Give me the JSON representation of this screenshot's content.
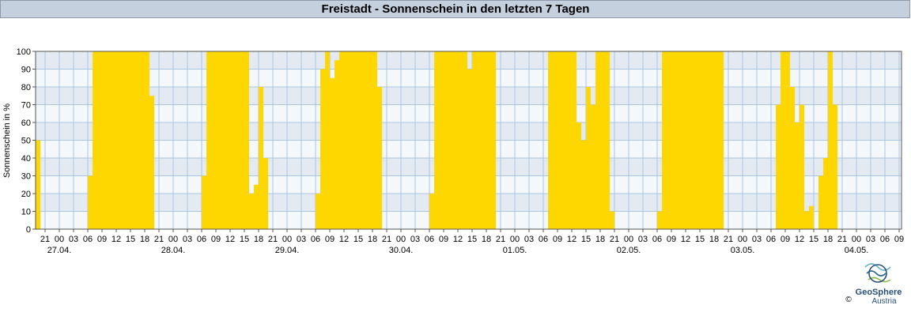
{
  "chart_data": {
    "type": "bar",
    "title": "Freistadt - Sonnenschein in den letzten 7 Tagen",
    "ylabel": "Sonnenschein in %",
    "color": "#ffd700",
    "grid": true,
    "xlim": [
      -5,
      177.5
    ],
    "ylim": [
      0,
      100
    ],
    "yticks": [
      0,
      10,
      20,
      30,
      40,
      50,
      60,
      70,
      80,
      90,
      100
    ],
    "xticks": [
      {
        "value": -3,
        "label": "21"
      },
      {
        "value": 0,
        "label": "00"
      },
      {
        "value": 3,
        "label": "03"
      },
      {
        "value": 6,
        "label": "06"
      },
      {
        "value": 9,
        "label": "09"
      },
      {
        "value": 12,
        "label": "12"
      },
      {
        "value": 15,
        "label": "15"
      },
      {
        "value": 18,
        "label": "18"
      },
      {
        "value": 21,
        "label": "21"
      },
      {
        "value": 24,
        "label": "00"
      },
      {
        "value": 27,
        "label": "03"
      },
      {
        "value": 30,
        "label": "06"
      },
      {
        "value": 33,
        "label": "09"
      },
      {
        "value": 36,
        "label": "12"
      },
      {
        "value": 39,
        "label": "15"
      },
      {
        "value": 42,
        "label": "18"
      },
      {
        "value": 45,
        "label": "21"
      },
      {
        "value": 48,
        "label": "00"
      },
      {
        "value": 51,
        "label": "03"
      },
      {
        "value": 54,
        "label": "06"
      },
      {
        "value": 57,
        "label": "09"
      },
      {
        "value": 60,
        "label": "12"
      },
      {
        "value": 63,
        "label": "15"
      },
      {
        "value": 66,
        "label": "18"
      },
      {
        "value": 69,
        "label": "21"
      },
      {
        "value": 72,
        "label": "00"
      },
      {
        "value": 75,
        "label": "03"
      },
      {
        "value": 78,
        "label": "06"
      },
      {
        "value": 81,
        "label": "09"
      },
      {
        "value": 84,
        "label": "12"
      },
      {
        "value": 87,
        "label": "15"
      },
      {
        "value": 90,
        "label": "18"
      },
      {
        "value": 93,
        "label": "21"
      },
      {
        "value": 96,
        "label": "00"
      },
      {
        "value": 99,
        "label": "03"
      },
      {
        "value": 102,
        "label": "06"
      },
      {
        "value": 105,
        "label": "09"
      },
      {
        "value": 108,
        "label": "12"
      },
      {
        "value": 111,
        "label": "15"
      },
      {
        "value": 114,
        "label": "18"
      },
      {
        "value": 117,
        "label": "21"
      },
      {
        "value": 120,
        "label": "00"
      },
      {
        "value": 123,
        "label": "03"
      },
      {
        "value": 126,
        "label": "06"
      },
      {
        "value": 129,
        "label": "09"
      },
      {
        "value": 132,
        "label": "12"
      },
      {
        "value": 135,
        "label": "15"
      },
      {
        "value": 138,
        "label": "18"
      },
      {
        "value": 141,
        "label": "21"
      },
      {
        "value": 144,
        "label": "00"
      },
      {
        "value": 147,
        "label": "03"
      },
      {
        "value": 150,
        "label": "06"
      },
      {
        "value": 153,
        "label": "09"
      },
      {
        "value": 156,
        "label": "12"
      },
      {
        "value": 159,
        "label": "15"
      },
      {
        "value": 162,
        "label": "18"
      },
      {
        "value": 165,
        "label": "21"
      },
      {
        "value": 168,
        "label": "00"
      },
      {
        "value": 171,
        "label": "03"
      },
      {
        "value": 174,
        "label": "06"
      },
      {
        "value": 177,
        "label": "09"
      }
    ],
    "day_labels": [
      {
        "value": 0,
        "label": "27.04."
      },
      {
        "value": 24,
        "label": "28.04."
      },
      {
        "value": 48,
        "label": "29.04."
      },
      {
        "value": 72,
        "label": "30.04."
      },
      {
        "value": 96,
        "label": "01.05."
      },
      {
        "value": 120,
        "label": "02.05."
      },
      {
        "value": 144,
        "label": "03.05."
      },
      {
        "value": 168,
        "label": "04.05."
      }
    ],
    "x": [
      -5,
      -4,
      -3,
      -2,
      -1,
      0,
      1,
      2,
      3,
      4,
      5,
      6,
      7,
      8,
      9,
      10,
      11,
      12,
      13,
      14,
      15,
      16,
      17,
      18,
      19,
      20,
      21,
      22,
      23,
      24,
      25,
      26,
      27,
      28,
      29,
      30,
      31,
      32,
      33,
      34,
      35,
      36,
      37,
      38,
      39,
      40,
      41,
      42,
      43,
      44,
      45,
      46,
      47,
      48,
      49,
      50,
      51,
      52,
      53,
      54,
      55,
      56,
      57,
      58,
      59,
      60,
      61,
      62,
      63,
      64,
      65,
      66,
      67,
      68,
      69,
      70,
      71,
      72,
      73,
      74,
      75,
      76,
      77,
      78,
      79,
      80,
      81,
      82,
      83,
      84,
      85,
      86,
      87,
      88,
      89,
      90,
      91,
      92,
      93,
      94,
      95,
      96,
      97,
      98,
      99,
      100,
      101,
      102,
      103,
      104,
      105,
      106,
      107,
      108,
      109,
      110,
      111,
      112,
      113,
      114,
      115,
      116,
      117,
      118,
      119,
      120,
      121,
      122,
      123,
      124,
      125,
      126,
      127,
      128,
      129,
      130,
      131,
      132,
      133,
      134,
      135,
      136,
      137,
      138,
      139,
      140,
      141,
      142,
      143,
      144,
      145,
      146,
      147,
      148,
      149,
      150,
      151,
      152,
      153,
      154,
      155,
      156,
      157,
      158,
      159,
      160,
      161,
      162,
      163,
      164,
      165,
      166,
      167,
      168,
      169,
      170,
      171,
      172,
      173,
      174,
      175,
      176,
      177
    ],
    "values": [
      50,
      0,
      0,
      0,
      0,
      0,
      0,
      0,
      0,
      0,
      0,
      30,
      100,
      100,
      100,
      100,
      100,
      100,
      100,
      100,
      100,
      100,
      100,
      100,
      75,
      0,
      0,
      0,
      0,
      0,
      0,
      0,
      0,
      0,
      0,
      30,
      100,
      100,
      100,
      100,
      100,
      100,
      100,
      100,
      100,
      20,
      25,
      80,
      40,
      0,
      0,
      0,
      0,
      0,
      0,
      0,
      0,
      0,
      0,
      20,
      90,
      100,
      85,
      95,
      100,
      100,
      100,
      100,
      100,
      100,
      100,
      100,
      80,
      0,
      0,
      0,
      0,
      0,
      0,
      0,
      0,
      0,
      0,
      20,
      100,
      100,
      100,
      100,
      100,
      100,
      100,
      90,
      100,
      100,
      100,
      100,
      100,
      0,
      0,
      0,
      0,
      0,
      0,
      0,
      0,
      0,
      0,
      0,
      100,
      100,
      100,
      100,
      100,
      100,
      60,
      50,
      80,
      70,
      100,
      100,
      100,
      10,
      0,
      0,
      0,
      0,
      0,
      0,
      0,
      0,
      0,
      10,
      100,
      100,
      100,
      100,
      100,
      100,
      100,
      100,
      100,
      100,
      100,
      100,
      100,
      0,
      0,
      0,
      0,
      0,
      0,
      0,
      0,
      0,
      0,
      0,
      70,
      100,
      100,
      80,
      60,
      70,
      10,
      13,
      0,
      30,
      40,
      100,
      70,
      0,
      0,
      0,
      0,
      0,
      0,
      0,
      0,
      0,
      0,
      0,
      0,
      0,
      0
    ]
  },
  "logo": {
    "name": "GeoSphere",
    "sub": "Austria",
    "copyright": "©"
  }
}
